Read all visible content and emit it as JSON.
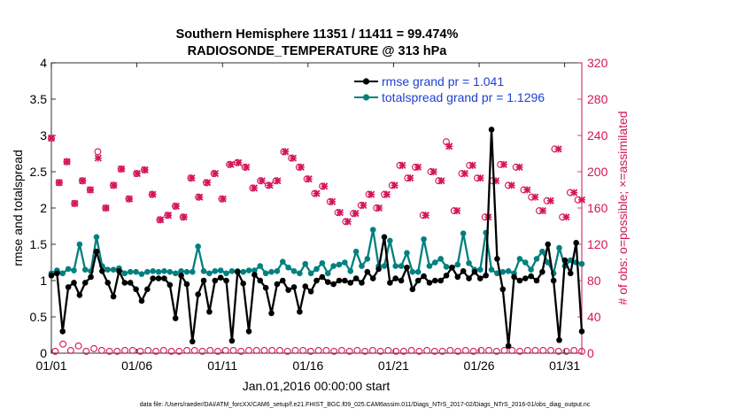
{
  "chart_data": {
    "type": "line",
    "title_line1": "Southern Hemisphere 11351 / 11411 = 99.474%",
    "title_line2": "RADIOSONDE_TEMPERATURE @ 313 hPa",
    "xlabel": "Jan.01,2016 00:00:00 start",
    "ylabel_left": "rmse and totalspread",
    "ylabel_right": "# of obs: o=possible; ×=assimilated",
    "footer": "data file: /Users/raeder/DAI/ATM_forcXX/CAM6_setup/f.e21.FHIST_BGC.f09_025.CAM6assim.011/Diags_NTrS_2017-02/Diags_NTrS_2016-01/obs_diag_output.nc",
    "x_range": [
      1,
      32
    ],
    "ylim_left": [
      0,
      4
    ],
    "ylim_right": [
      0,
      320
    ],
    "x_ticks": [
      {
        "x": 1,
        "label": "01/01"
      },
      {
        "x": 6,
        "label": "01/06"
      },
      {
        "x": 11,
        "label": "01/11"
      },
      {
        "x": 16,
        "label": "01/16"
      },
      {
        "x": 21,
        "label": "01/21"
      },
      {
        "x": 26,
        "label": "01/26"
      },
      {
        "x": 31,
        "label": "01/31"
      }
    ],
    "y_ticks_left": [
      "0",
      "0.5",
      "1",
      "1.5",
      "2",
      "2.5",
      "3",
      "3.5",
      "4"
    ],
    "y_ticks_right": [
      "0",
      "40",
      "80",
      "120",
      "160",
      "200",
      "240",
      "280",
      "320"
    ],
    "colors": {
      "rmse": "#000000",
      "spread": "#00807f",
      "obs": "#d4145a",
      "axis": "#000000",
      "legend_text": "#1f3fd0"
    },
    "series": [
      {
        "name": "rmse grand pr = 1.041",
        "axis": "left",
        "values": [
          1.07,
          1.1,
          0.3,
          0.91,
          0.97,
          0.8,
          0.97,
          1.05,
          1.4,
          1.13,
          0.97,
          0.78,
          1.13,
          0.97,
          0.97,
          0.88,
          0.72,
          0.88,
          1.03,
          1.03,
          1.03,
          0.94,
          0.48,
          1.07,
          0.95,
          0.16,
          0.81,
          1.0,
          0.57,
          1.0,
          1.04,
          1.0,
          0.17,
          1.12,
          0.96,
          0.3,
          1.08,
          1.0,
          0.9,
          0.55,
          0.95,
          1.0,
          0.87,
          0.91,
          0.57,
          0.92,
          0.85,
          1.0,
          1.05,
          0.98,
          0.95,
          1.0,
          1.0,
          0.97,
          1.03,
          0.97,
          1.12,
          1.03,
          1.16,
          1.6,
          0.97,
          1.03,
          1.0,
          1.18,
          0.88,
          1.0,
          1.06,
          0.97,
          1.0,
          1.0,
          1.07,
          1.18,
          1.05,
          1.13,
          1.03,
          1.12,
          1.03,
          1.07,
          3.08,
          1.3,
          0.88,
          0.1,
          1.05,
          1.0,
          1.03,
          1.06,
          1.0,
          1.12,
          1.5,
          1.0,
          0.18,
          1.28,
          1.1,
          1.52,
          0.3
        ]
      },
      {
        "name": "totalspread grand pr = 1.1296",
        "axis": "left",
        "values": [
          1.1,
          1.14,
          1.1,
          1.16,
          1.14,
          1.5,
          1.15,
          1.13,
          1.6,
          1.2,
          1.15,
          1.15,
          1.17,
          1.1,
          1.12,
          1.12,
          1.09,
          1.12,
          1.13,
          1.12,
          1.13,
          1.12,
          1.1,
          1.13,
          1.12,
          1.12,
          1.47,
          1.13,
          1.1,
          1.13,
          1.14,
          1.1,
          1.13,
          1.13,
          1.12,
          1.14,
          1.14,
          1.2,
          1.1,
          1.12,
          1.13,
          1.26,
          1.18,
          1.13,
          1.1,
          1.23,
          1.1,
          1.16,
          1.24,
          1.1,
          1.2,
          1.22,
          1.25,
          1.13,
          1.4,
          1.2,
          1.3,
          1.7,
          1.2,
          1.2,
          1.55,
          1.2,
          1.2,
          1.38,
          1.12,
          1.12,
          1.57,
          1.2,
          1.25,
          1.3,
          1.19,
          1.18,
          1.22,
          1.65,
          1.24,
          1.15,
          1.15,
          1.66,
          1.15,
          1.1,
          1.12,
          1.13,
          1.1,
          1.3,
          1.25,
          1.15,
          1.3,
          1.4,
          1.25,
          1.1,
          1.45,
          1.2,
          1.28,
          1.25,
          1.23
        ]
      },
      {
        "name": "obs possible",
        "axis": "right",
        "values": [
          237,
          2,
          188,
          10,
          211,
          3,
          165,
          8,
          190,
          2,
          180,
          5,
          222,
          3,
          160,
          2,
          185,
          2,
          203,
          3,
          170,
          3,
          198,
          2,
          202,
          3,
          175,
          2,
          147,
          3,
          152,
          2,
          162,
          2,
          150,
          3,
          193,
          3,
          172,
          2,
          188,
          3,
          198,
          2,
          170,
          3,
          208,
          3,
          210,
          2,
          205,
          3,
          182,
          3,
          190,
          3,
          185,
          3,
          190,
          3,
          222,
          2,
          215,
          3,
          205,
          3,
          192,
          2,
          176,
          3,
          184,
          3,
          167,
          2,
          155,
          3,
          145,
          2,
          154,
          3,
          163,
          2,
          175,
          3,
          160,
          2,
          175,
          3,
          185,
          2,
          207,
          2,
          193,
          3,
          205,
          2,
          152,
          3,
          200,
          2,
          190,
          2,
          233,
          3,
          157,
          2,
          198,
          3,
          207,
          2,
          193,
          3,
          150,
          3,
          190,
          2,
          208,
          3,
          185,
          3,
          205,
          2,
          180,
          3,
          172,
          3,
          157,
          3,
          168,
          3,
          225,
          2,
          150,
          2,
          177,
          3,
          169,
          2
        ]
      },
      {
        "name": "obs assimilated",
        "axis": "right",
        "values": [
          237,
          188,
          211,
          165,
          190,
          180,
          215,
          160,
          185,
          203,
          170,
          198,
          202,
          175,
          147,
          152,
          162,
          150,
          193,
          172,
          188,
          198,
          170,
          208,
          210,
          205,
          182,
          190,
          185,
          190,
          222,
          215,
          205,
          192,
          176,
          184,
          167,
          155,
          145,
          154,
          163,
          175,
          160,
          175,
          185,
          207,
          193,
          205,
          152,
          200,
          190,
          228,
          157,
          198,
          207,
          193,
          150,
          190,
          208,
          185,
          205,
          180,
          172,
          157,
          168,
          225,
          150,
          177,
          169
        ]
      }
    ]
  }
}
